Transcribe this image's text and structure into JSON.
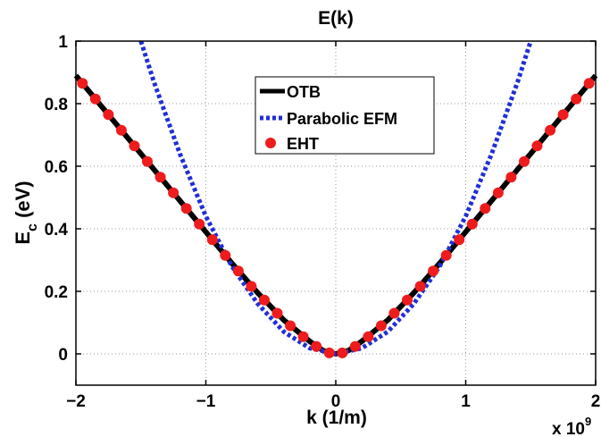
{
  "chart_data": {
    "type": "line",
    "title": "E(k)",
    "xlabel": "k (1/m)",
    "ylabel_main": "E",
    "ylabel_sub": "c",
    "ylabel_rest": " (eV)",
    "x_multiplier_base": "x 10",
    "x_multiplier_exp": "9",
    "xlim": [
      -2,
      2
    ],
    "ylim": [
      -0.1,
      1
    ],
    "grid": true,
    "legend_placement": "top-center",
    "x_ticks": [
      -2,
      -1,
      0,
      1,
      2
    ],
    "x_tick_labels": [
      "−2",
      "−1",
      "0",
      "1",
      "2"
    ],
    "y_ticks": [
      0,
      0.2,
      0.4,
      0.6,
      0.8,
      1
    ],
    "y_tick_labels": [
      "0",
      "0.2",
      "0.4",
      "0.6",
      "0.8",
      "1"
    ],
    "series": [
      {
        "name": "OTB",
        "style": "solid",
        "color": "#000000",
        "x": [
          -2.0,
          -1.8,
          -1.6,
          -1.4,
          -1.2,
          -1.0,
          -0.8,
          -0.6,
          -0.4,
          -0.2,
          -0.1,
          0.0,
          0.1,
          0.2,
          0.4,
          0.6,
          0.8,
          1.0,
          1.2,
          1.4,
          1.6,
          1.8,
          2.0
        ],
        "y": [
          0.89,
          0.79,
          0.69,
          0.59,
          0.49,
          0.39,
          0.29,
          0.195,
          0.108,
          0.04,
          0.011,
          0.0,
          0.011,
          0.04,
          0.108,
          0.195,
          0.29,
          0.39,
          0.49,
          0.59,
          0.69,
          0.79,
          0.89
        ]
      },
      {
        "name": "Parabolic EFM",
        "style": "dotted",
        "color": "#1f2fd6",
        "x": [
          -1.5,
          -1.4,
          -1.2,
          -1.0,
          -0.8,
          -0.6,
          -0.4,
          -0.2,
          0.0,
          0.2,
          0.4,
          0.6,
          0.8,
          1.0,
          1.2,
          1.4,
          1.5
        ],
        "y": [
          1.0,
          0.87,
          0.64,
          0.44,
          0.28,
          0.16,
          0.071,
          0.018,
          0.0,
          0.018,
          0.071,
          0.16,
          0.28,
          0.44,
          0.64,
          0.87,
          1.0
        ]
      },
      {
        "name": "EHT",
        "style": "markers",
        "color": "#ee1c1c",
        "x": [
          -1.95,
          -1.85,
          -1.75,
          -1.65,
          -1.55,
          -1.45,
          -1.35,
          -1.25,
          -1.15,
          -1.05,
          -0.95,
          -0.85,
          -0.75,
          -0.65,
          -0.55,
          -0.45,
          -0.35,
          -0.25,
          -0.15,
          -0.05,
          0.05,
          0.15,
          0.25,
          0.35,
          0.45,
          0.55,
          0.65,
          0.75,
          0.85,
          0.95,
          1.05,
          1.15,
          1.25,
          1.35,
          1.45,
          1.55,
          1.65,
          1.75,
          1.85,
          1.95
        ],
        "y": [
          0.865,
          0.815,
          0.765,
          0.715,
          0.665,
          0.615,
          0.565,
          0.515,
          0.465,
          0.415,
          0.365,
          0.315,
          0.265,
          0.216,
          0.172,
          0.13,
          0.09,
          0.055,
          0.024,
          0.003,
          0.003,
          0.024,
          0.055,
          0.09,
          0.13,
          0.172,
          0.216,
          0.265,
          0.315,
          0.365,
          0.415,
          0.465,
          0.515,
          0.565,
          0.615,
          0.665,
          0.715,
          0.765,
          0.815,
          0.865
        ]
      }
    ]
  }
}
